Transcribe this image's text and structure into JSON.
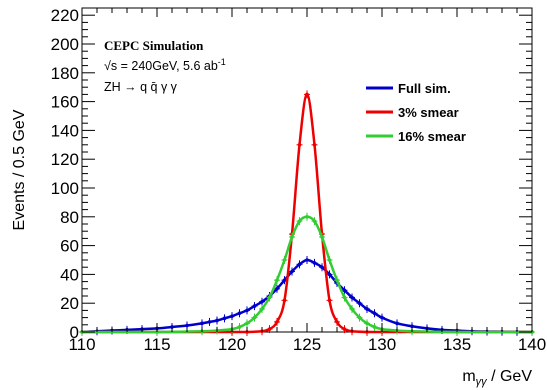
{
  "chart_data": {
    "type": "line",
    "xlabel": "m_γγ / GeV",
    "xlabel_main": "m",
    "xlabel_sub": "γγ",
    "xlabel_unit": " / GeV",
    "ylabel": "Events / 0.5 GeV",
    "xlim": [
      110,
      140
    ],
    "ylim": [
      0,
      225
    ],
    "x_ticks": [
      "110",
      "115",
      "120",
      "125",
      "130",
      "135",
      "140"
    ],
    "y_ticks": [
      "0",
      "20",
      "40",
      "60",
      "80",
      "100",
      "120",
      "140",
      "160",
      "180",
      "200",
      "220"
    ],
    "annotations": {
      "title": "CEPC Simulation",
      "energy_sqrt": "√s",
      "energy": " = 240GeV, 5.6 ab",
      "energy_sup": "-1",
      "process": "ZH → q q̄ γ γ"
    },
    "legend_position": "top-right",
    "series": [
      {
        "name": "Full sim.",
        "color": "#0000cc",
        "x": [
          110,
          111,
          112,
          113,
          114,
          115,
          116,
          117,
          118,
          118.5,
          119,
          119.5,
          120,
          120.5,
          121,
          121.5,
          122,
          122.5,
          123,
          123.5,
          124,
          124.5,
          125,
          125.5,
          126,
          126.5,
          127,
          127.5,
          128,
          128.5,
          129,
          129.5,
          130,
          131,
          132,
          133,
          134,
          135,
          136,
          137,
          138,
          139,
          140
        ],
        "y": [
          0,
          0.5,
          1,
          1.5,
          2,
          2.5,
          3.5,
          4.5,
          6,
          7,
          8,
          9.5,
          11,
          13,
          15,
          18,
          21,
          25,
          30,
          36,
          42,
          47,
          50,
          48,
          45,
          40,
          34,
          29,
          24,
          20,
          16,
          13,
          10,
          6,
          4,
          2.5,
          1.5,
          1,
          0.5,
          0.3,
          0.2,
          0.1,
          0
        ]
      },
      {
        "name": "3% smear",
        "color": "#ee0000",
        "x": [
          110,
          115,
          120,
          121,
          122,
          122.5,
          123,
          123.5,
          124,
          124.5,
          125,
          125.5,
          126,
          126.5,
          127,
          127.5,
          128,
          129,
          130,
          135,
          140
        ],
        "y": [
          0,
          0,
          0,
          0,
          0.5,
          2,
          7,
          22,
          68,
          130,
          165,
          130,
          68,
          22,
          7,
          2,
          0.5,
          0,
          0,
          0,
          0
        ]
      },
      {
        "name": "16% smear",
        "color": "#33cc33",
        "x": [
          110,
          115,
          118,
          119,
          120,
          120.5,
          121,
          121.5,
          122,
          122.5,
          123,
          123.5,
          124,
          124.5,
          125,
          125.5,
          126,
          126.5,
          127,
          127.5,
          128,
          128.5,
          129,
          129.5,
          130,
          131,
          132,
          135,
          140
        ],
        "y": [
          0,
          0,
          0.5,
          1,
          2,
          3.5,
          6,
          10,
          16,
          24,
          36,
          50,
          66,
          77,
          80,
          77,
          66,
          50,
          36,
          24,
          16,
          10,
          6,
          3.5,
          2,
          1,
          0.5,
          0,
          0
        ]
      }
    ]
  }
}
